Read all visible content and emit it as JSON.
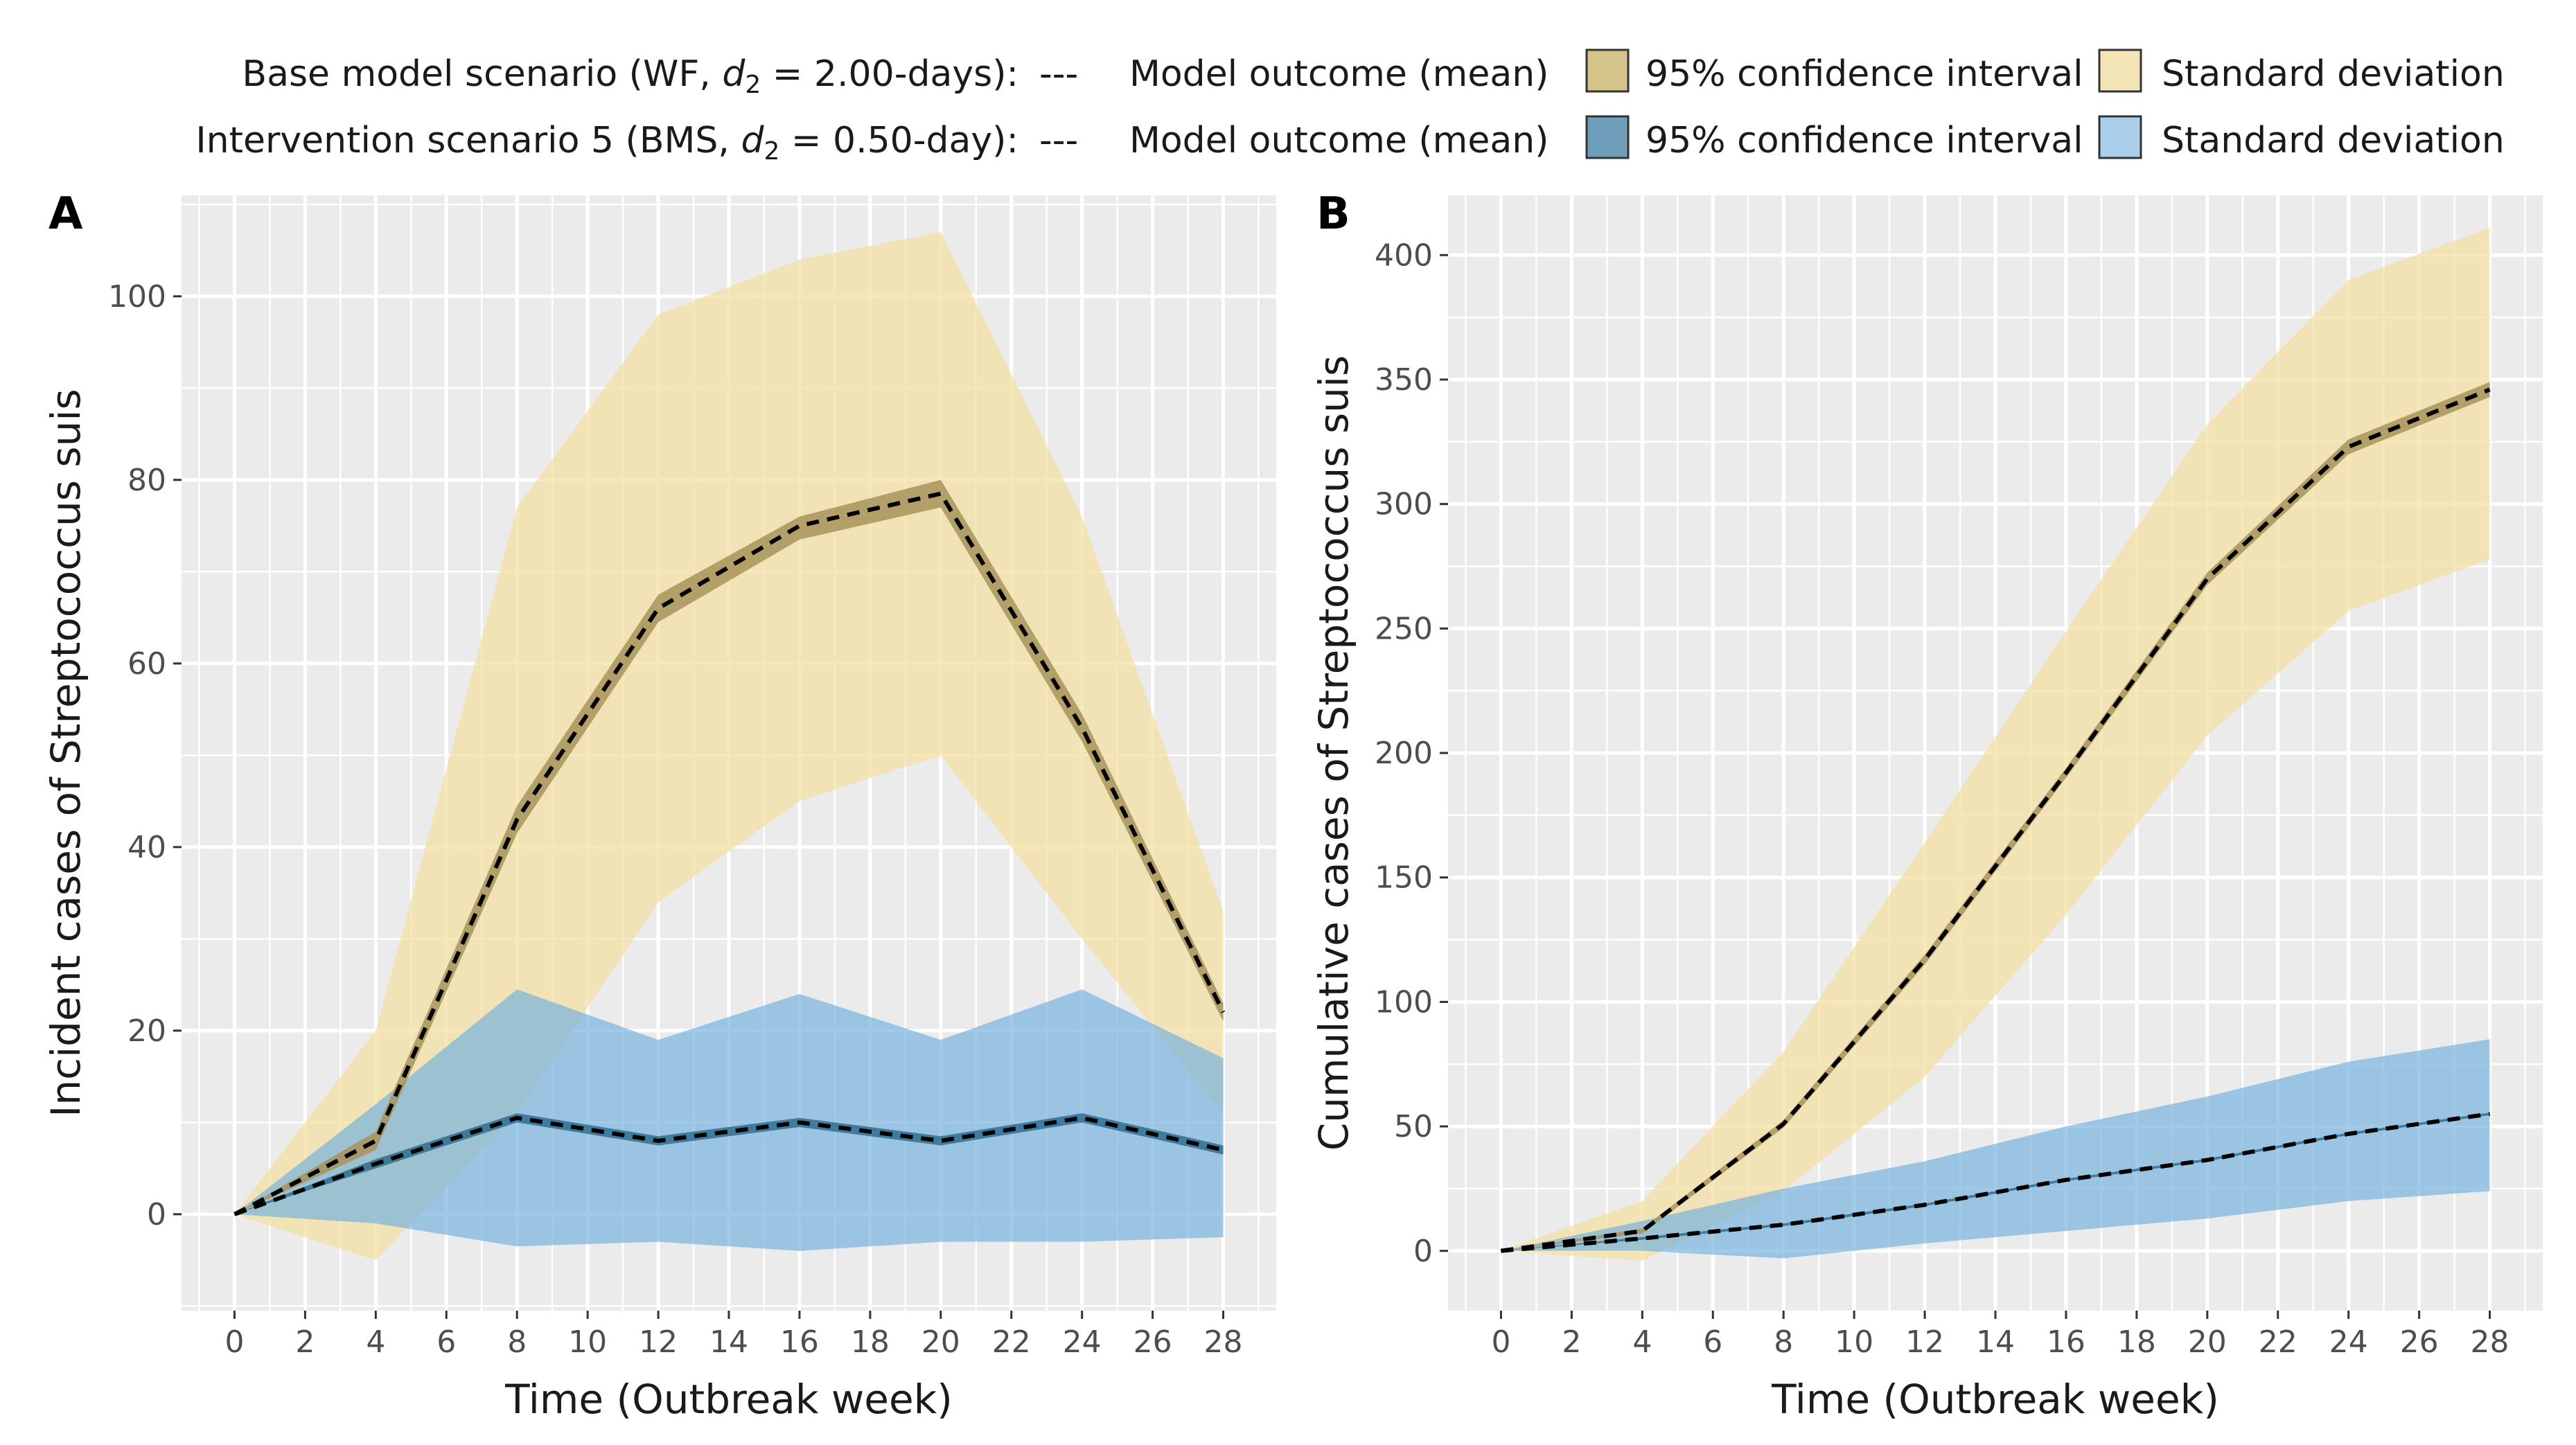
{
  "legend": {
    "rows": [
      {
        "scenario": "Base model scenario (WF,",
        "d_sym": "d",
        "d_sub": "2",
        "d_val": " = 2.00-days):",
        "line_glyph": "---",
        "mean_label": "Model outcome (mean)",
        "ci_label": "95% confidence interval",
        "sd_label": "Standard deviation",
        "ci_color": "#d4c48a",
        "sd_color": "#f3e4b6"
      },
      {
        "scenario": "Intervention scenario 5 (BMS,",
        "d_sym": "d",
        "d_sub": "2",
        "d_val": " = 0.50-day):",
        "line_glyph": "---",
        "mean_label": "Model outcome (mean)",
        "ci_label": "95% confidence interval",
        "sd_label": "Standard deviation",
        "ci_color": "#6f9fbb",
        "sd_color": "#a9cfea"
      }
    ]
  },
  "chart_data": [
    {
      "type": "area",
      "panel": "A",
      "xlabel": "Time (Outbreak week)",
      "ylabel": "Incident cases of Streptococcus suis",
      "xlim": [
        -1.5,
        29.5
      ],
      "ylim": [
        -10.5,
        111
      ],
      "xticks": [
        0,
        2,
        4,
        6,
        8,
        10,
        12,
        14,
        16,
        18,
        20,
        22,
        24,
        26,
        28
      ],
      "yticks": [
        0,
        20,
        40,
        60,
        80,
        100
      ],
      "x": [
        0,
        4,
        8,
        12,
        16,
        20,
        24,
        28
      ],
      "series": [
        {
          "name": "Base model scenario (WF, d2 = 2.00-days)",
          "mean": [
            0,
            8,
            43,
            66,
            75,
            78.5,
            53,
            22
          ],
          "ci_low": [
            0,
            7,
            41.5,
            64.5,
            73.5,
            77,
            51.5,
            21
          ],
          "ci_high": [
            0,
            9,
            44.5,
            67.5,
            76,
            80,
            54.5,
            23
          ],
          "sd_low": [
            0,
            -5,
            11,
            34,
            45,
            50,
            30,
            11
          ],
          "sd_high": [
            0,
            20,
            77,
            98,
            104,
            107,
            76,
            33
          ],
          "mean_color": "#000000",
          "ci_color": "#a8935a",
          "sd_color": "#f3df9f"
        },
        {
          "name": "Intervention scenario 5 (BMS, d2 = 0.50-day)",
          "mean": [
            0,
            5.5,
            10.5,
            8,
            10,
            8,
            10.5,
            7
          ],
          "ci_low": [
            0,
            5,
            10,
            7.5,
            9.5,
            7.5,
            10,
            6.5
          ],
          "ci_high": [
            0,
            6,
            11,
            8.5,
            10.5,
            8.5,
            11,
            7.5
          ],
          "sd_low": [
            0,
            -1,
            -3.5,
            -3,
            -4,
            -3,
            -3,
            -2.5
          ],
          "sd_high": [
            0,
            12,
            24.5,
            19,
            24,
            19,
            24.5,
            17
          ],
          "mean_color": "#000000",
          "ci_color": "#2f6f8f",
          "sd_color": "#78b3de"
        }
      ]
    },
    {
      "type": "area",
      "panel": "B",
      "xlabel": "Time (Outbreak week)",
      "ylabel": "Cumulative cases of Streptococcus suis",
      "xlim": [
        -1.5,
        29.5
      ],
      "ylim": [
        -24,
        424
      ],
      "xticks": [
        0,
        2,
        4,
        6,
        8,
        10,
        12,
        14,
        16,
        18,
        20,
        22,
        24,
        26,
        28
      ],
      "yticks": [
        0,
        50,
        100,
        150,
        200,
        250,
        300,
        350,
        400
      ],
      "x": [
        0,
        4,
        8,
        12,
        16,
        20,
        24,
        28
      ],
      "series": [
        {
          "name": "Base model scenario (WF, d2 = 2.00-days)",
          "mean": [
            0,
            8,
            51,
            117,
            192,
            270,
            323,
            346
          ],
          "ci_low": [
            0,
            7,
            49.5,
            115,
            190,
            267.5,
            320,
            343
          ],
          "ci_high": [
            0,
            9,
            52.5,
            119,
            194,
            272.5,
            326,
            349
          ],
          "sd_low": [
            0,
            -4,
            24,
            70,
            135,
            207,
            257,
            278
          ],
          "sd_high": [
            0,
            20,
            80,
            164,
            249,
            332,
            390,
            411
          ],
          "mean_color": "#000000",
          "ci_color": "#a8935a",
          "sd_color": "#f3df9f"
        },
        {
          "name": "Intervention scenario 5 (BMS, d2 = 0.50-day)",
          "mean": [
            0,
            5,
            10.5,
            18.5,
            28.5,
            36.5,
            47,
            55
          ],
          "ci_low": [
            0,
            4.5,
            10,
            18,
            28,
            36,
            46.5,
            54.5
          ],
          "ci_high": [
            0,
            5.5,
            11,
            19,
            29,
            37,
            47.5,
            55.5
          ],
          "sd_low": [
            0,
            0,
            -3,
            3,
            8,
            13,
            20,
            24
          ],
          "sd_high": [
            0,
            12,
            25,
            36,
            50,
            62,
            76,
            85
          ],
          "mean_color": "#000000",
          "ci_color": "#2f6f8f",
          "sd_color": "#78b3de"
        }
      ]
    }
  ]
}
